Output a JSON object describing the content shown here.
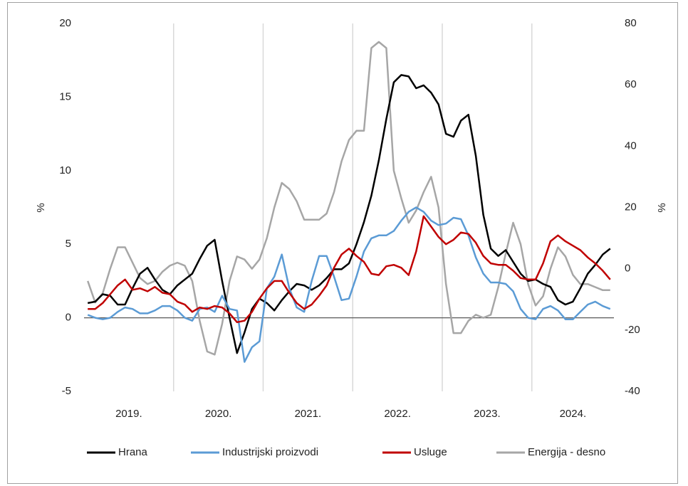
{
  "chart_data": {
    "type": "line",
    "y_label": "%",
    "y2_label": "%",
    "categories": [
      "2019.",
      null,
      null,
      null,
      null,
      null,
      null,
      null,
      null,
      null,
      null,
      null,
      "2020.",
      null,
      null,
      null,
      null,
      null,
      null,
      null,
      null,
      null,
      null,
      null,
      "2021.",
      null,
      null,
      null,
      null,
      null,
      null,
      null,
      null,
      null,
      null,
      null,
      "2022.",
      null,
      null,
      null,
      null,
      null,
      null,
      null,
      null,
      null,
      null,
      null,
      "2023.",
      null,
      null,
      null,
      null,
      null,
      null,
      null,
      null,
      null,
      null,
      null,
      "2024.",
      null,
      null,
      null,
      null,
      null,
      null,
      null,
      null,
      null,
      null
    ],
    "series": [
      {
        "name": "Hrana",
        "color": "#000000",
        "values": [
          1.0,
          1.1,
          1.6,
          1.5,
          0.9,
          0.9,
          2.0,
          3.0,
          3.4,
          2.6,
          1.9,
          1.6,
          2.2,
          2.6,
          3.0,
          4.0,
          4.9,
          5.3,
          2.5,
          0.0,
          -2.4,
          -1.0,
          0.6,
          1.3,
          1.0,
          0.5,
          1.2,
          1.8,
          2.3,
          2.2,
          1.9,
          2.2,
          2.7,
          3.3,
          3.3,
          3.7,
          5.0,
          6.5,
          8.3,
          10.7,
          13.5,
          16.0,
          16.5,
          16.4,
          15.6,
          15.8,
          15.3,
          14.5,
          12.5,
          12.3,
          13.4,
          13.8,
          11.0,
          7.0,
          4.7,
          4.2,
          4.6,
          3.8,
          3.0,
          2.5,
          2.6,
          2.3,
          2.1,
          1.2,
          0.9,
          1.1,
          2.0,
          3.0,
          3.6,
          4.3,
          4.7
        ]
      },
      {
        "name": "Industrijski proizvodi",
        "color": "#5b9bd5",
        "values": [
          0.2,
          0.0,
          -0.1,
          0.0,
          0.4,
          0.7,
          0.6,
          0.3,
          0.3,
          0.5,
          0.8,
          0.8,
          0.5,
          0.0,
          -0.2,
          0.6,
          0.7,
          0.4,
          1.5,
          0.6,
          0.5,
          -3.0,
          -2.0,
          -1.6,
          2.0,
          2.8,
          4.3,
          2.0,
          0.7,
          0.4,
          2.5,
          4.2,
          4.2,
          2.8,
          1.2,
          1.3,
          2.8,
          4.5,
          5.4,
          5.6,
          5.6,
          5.9,
          6.6,
          7.2,
          7.5,
          7.2,
          6.6,
          6.3,
          6.4,
          6.8,
          6.7,
          5.6,
          4.1,
          3.0,
          2.4,
          2.4,
          2.3,
          1.8,
          0.6,
          0.0,
          -0.1,
          0.6,
          0.8,
          0.5,
          -0.1,
          -0.1,
          0.4,
          0.9,
          1.1,
          0.8,
          0.6
        ]
      },
      {
        "name": "Usluge",
        "color": "#c00000",
        "values": [
          0.6,
          0.6,
          1.0,
          1.6,
          2.2,
          2.6,
          1.9,
          2.0,
          1.8,
          2.1,
          1.7,
          1.6,
          1.1,
          0.9,
          0.4,
          0.7,
          0.6,
          0.8,
          0.7,
          0.3,
          -0.3,
          -0.2,
          0.4,
          1.3,
          2.0,
          2.5,
          2.5,
          1.7,
          1.0,
          0.6,
          0.9,
          1.5,
          2.2,
          3.4,
          4.3,
          4.7,
          4.2,
          3.8,
          3.0,
          2.9,
          3.5,
          3.6,
          3.4,
          2.9,
          4.5,
          6.9,
          6.2,
          5.5,
          5.0,
          5.3,
          5.8,
          5.7,
          5.1,
          4.2,
          3.7,
          3.6,
          3.6,
          3.2,
          2.7,
          2.6,
          2.6,
          3.7,
          5.2,
          5.6,
          5.2,
          4.9,
          4.6,
          4.1,
          3.7,
          3.2,
          2.6
        ]
      },
      {
        "name": "Energija - desno",
        "color": "#a6a6a6",
        "axis": "y2",
        "values": [
          -4,
          -11,
          -8,
          0,
          7,
          7,
          2,
          -3,
          -5,
          -4,
          -1,
          1,
          2,
          1,
          -4,
          -17,
          -27,
          -28,
          -18,
          -4,
          4,
          3,
          0,
          3,
          10,
          20,
          28,
          26,
          22,
          16,
          16,
          16,
          18,
          25,
          35,
          42,
          45,
          45,
          72,
          74,
          72,
          32,
          23,
          15,
          19,
          25,
          30,
          20,
          -5,
          -21,
          -21,
          -17,
          -15,
          -16,
          -15,
          -6,
          5,
          15,
          8,
          -5,
          -12,
          -9,
          0,
          7,
          4,
          -2,
          -5,
          -5,
          -6,
          -7,
          -7
        ]
      }
    ],
    "ylim": [
      -5,
      20
    ],
    "yticks": [
      -5,
      0,
      5,
      10,
      15,
      20
    ],
    "y2lim": [
      -40,
      80
    ],
    "y2ticks": [
      -40,
      -20,
      0,
      20,
      40,
      60,
      80
    ],
    "grid": "x",
    "legend": "bottom"
  }
}
